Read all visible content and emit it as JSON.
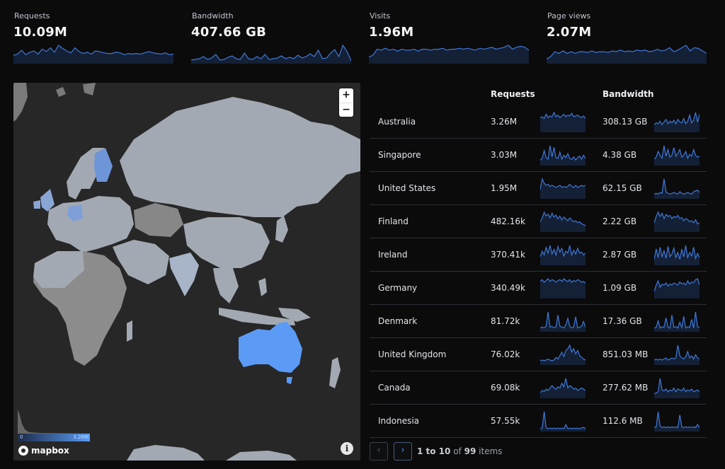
{
  "colors": {
    "accent": "#4c8cf2",
    "spark_line": "#3f78d8",
    "land": "#a0a6af",
    "land_dark": "#7a7a7a",
    "ocean": "#272727",
    "australia": "#5b9bf6"
  },
  "stats": [
    {
      "label": "Requests",
      "value": "10.09M",
      "spark": [
        12,
        14,
        20,
        13,
        17,
        19,
        14,
        22,
        18,
        24,
        17,
        28,
        23,
        19,
        16,
        24,
        18,
        15,
        17,
        14,
        19,
        18,
        16,
        15,
        15,
        17,
        16,
        13,
        15,
        14,
        15,
        14,
        16,
        18,
        16,
        15,
        14,
        16,
        13,
        14
      ]
    },
    {
      "label": "Bandwidth",
      "value": "407.66 GB",
      "spark": [
        4,
        5,
        6,
        9,
        5,
        7,
        12,
        4,
        5,
        8,
        10,
        6,
        5,
        14,
        6,
        5,
        9,
        6,
        12,
        5,
        6,
        7,
        10,
        6,
        8,
        6,
        11,
        7,
        9,
        13,
        9,
        18,
        6,
        7,
        14,
        19,
        9,
        25,
        16,
        3
      ]
    },
    {
      "label": "Visits",
      "value": "1.96M",
      "spark": [
        6,
        8,
        14,
        13,
        15,
        13,
        14,
        12,
        14,
        13,
        13,
        14,
        12,
        14,
        14,
        13,
        14,
        14,
        15,
        13,
        14,
        14,
        15,
        14,
        15,
        14,
        13,
        15,
        14,
        15,
        16,
        14,
        15,
        16,
        18,
        14,
        16,
        17,
        16,
        13
      ]
    },
    {
      "label": "Page views",
      "value": "2.07M",
      "spark": [
        5,
        8,
        14,
        12,
        15,
        12,
        14,
        12,
        14,
        14,
        13,
        15,
        13,
        14,
        14,
        13,
        15,
        14,
        16,
        14,
        15,
        14,
        16,
        15,
        16,
        14,
        15,
        17,
        15,
        16,
        19,
        14,
        16,
        19,
        22,
        15,
        19,
        18,
        15,
        12
      ]
    }
  ],
  "map": {
    "zoom_in": "+",
    "zoom_out": "−",
    "legend_min": "0",
    "legend_max": "3.26M",
    "attribution": "mapbox",
    "info": "i"
  },
  "table": {
    "headers": {
      "country": "",
      "requests": "Requests",
      "bandwidth": "Bandwidth"
    },
    "rows": [
      {
        "country": "Australia",
        "requests": "3.26M",
        "bandwidth": "308.13 GB",
        "req_spark": [
          16,
          17,
          15,
          20,
          16,
          18,
          17,
          22,
          17,
          19,
          16,
          18,
          20,
          17,
          19,
          18,
          21,
          17,
          18,
          19,
          17,
          16,
          18,
          15
        ],
        "bw_spark": [
          8,
          10,
          9,
          12,
          8,
          11,
          14,
          9,
          12,
          10,
          13,
          9,
          14,
          11,
          10,
          15,
          9,
          12,
          19,
          10,
          13,
          22,
          11,
          20
        ]
      },
      {
        "country": "Singapore",
        "requests": "3.03M",
        "bandwidth": "4.38 GB",
        "req_spark": [
          6,
          8,
          18,
          9,
          7,
          24,
          10,
          22,
          9,
          8,
          16,
          7,
          12,
          9,
          14,
          8,
          7,
          10,
          6,
          9,
          11,
          7,
          12,
          8
        ],
        "bw_spark": [
          6,
          8,
          14,
          10,
          7,
          20,
          9,
          16,
          8,
          10,
          18,
          9,
          12,
          16,
          8,
          10,
          14,
          7,
          11,
          9,
          16,
          10,
          8,
          9
        ]
      },
      {
        "country": "United States",
        "requests": "1.95M",
        "bandwidth": "62.15 GB",
        "req_spark": [
          8,
          18,
          14,
          12,
          13,
          11,
          12,
          11,
          10,
          11,
          12,
          10,
          11,
          10,
          11,
          13,
          11,
          10,
          12,
          10,
          11,
          12,
          11,
          12
        ],
        "bw_spark": [
          5,
          6,
          5,
          7,
          6,
          24,
          8,
          6,
          5,
          6,
          7,
          6,
          5,
          8,
          6,
          5,
          6,
          7,
          6,
          5,
          8,
          9,
          10,
          7
        ]
      },
      {
        "country": "Finland",
        "requests": "482.16k",
        "bandwidth": "2.22 GB",
        "req_spark": [
          10,
          14,
          20,
          16,
          18,
          14,
          19,
          15,
          17,
          13,
          16,
          12,
          15,
          13,
          11,
          14,
          12,
          10,
          11,
          9,
          10,
          8,
          7,
          6
        ],
        "bw_spark": [
          8,
          14,
          18,
          14,
          17,
          12,
          16,
          14,
          15,
          12,
          14,
          13,
          15,
          12,
          13,
          10,
          12,
          11,
          9,
          10,
          8,
          11,
          7,
          8
        ]
      },
      {
        "country": "Ireland",
        "requests": "370.41k",
        "bandwidth": "2.87 GB",
        "req_spark": [
          8,
          14,
          10,
          18,
          12,
          20,
          11,
          16,
          10,
          19,
          13,
          17,
          9,
          14,
          12,
          20,
          10,
          15,
          11,
          17,
          12,
          13,
          10,
          12
        ],
        "bw_spark": [
          6,
          18,
          8,
          20,
          9,
          16,
          7,
          21,
          9,
          12,
          19,
          8,
          14,
          6,
          18,
          9,
          22,
          8,
          14,
          10,
          20,
          7,
          13,
          8
        ]
      },
      {
        "country": "Germany",
        "requests": "340.49k",
        "bandwidth": "1.09 GB",
        "req_spark": [
          18,
          20,
          17,
          19,
          21,
          18,
          20,
          19,
          17,
          19,
          20,
          18,
          21,
          19,
          18,
          20,
          17,
          19,
          18,
          20,
          19,
          17,
          18,
          16
        ],
        "bw_spark": [
          6,
          12,
          16,
          10,
          13,
          12,
          14,
          11,
          13,
          12,
          14,
          13,
          12,
          15,
          13,
          14,
          12,
          16,
          13,
          15,
          14,
          17,
          18,
          12
        ]
      },
      {
        "country": "Denmark",
        "requests": "81.72k",
        "bandwidth": "17.36 GB",
        "req_spark": [
          4,
          5,
          4,
          6,
          24,
          5,
          6,
          4,
          5,
          20,
          6,
          5,
          4,
          8,
          16,
          6,
          4,
          5,
          18,
          4,
          5,
          6,
          12,
          5
        ],
        "bw_spark": [
          4,
          5,
          14,
          4,
          6,
          5,
          18,
          5,
          4,
          22,
          5,
          6,
          4,
          12,
          5,
          20,
          4,
          6,
          5,
          16,
          4,
          26,
          6,
          5
        ]
      },
      {
        "country": "United Kingdom",
        "requests": "76.02k",
        "bandwidth": "851.03 MB",
        "req_spark": [
          4,
          5,
          4,
          5,
          6,
          5,
          4,
          5,
          8,
          6,
          10,
          14,
          9,
          16,
          18,
          22,
          14,
          18,
          12,
          16,
          10,
          8,
          6,
          5
        ],
        "bw_spark": [
          4,
          5,
          4,
          5,
          4,
          5,
          6,
          4,
          5,
          6,
          5,
          6,
          18,
          8,
          6,
          5,
          7,
          12,
          6,
          8,
          5,
          9,
          6,
          5
        ]
      },
      {
        "country": "Canada",
        "requests": "69.08k",
        "bandwidth": "277.62 MB",
        "req_spark": [
          4,
          6,
          5,
          7,
          6,
          8,
          10,
          8,
          7,
          9,
          8,
          12,
          9,
          16,
          8,
          10,
          9,
          7,
          8,
          6,
          7,
          8,
          7,
          6
        ],
        "bw_spark": [
          4,
          5,
          6,
          20,
          8,
          7,
          9,
          6,
          8,
          7,
          10,
          6,
          9,
          8,
          7,
          10,
          6,
          8,
          7,
          9,
          6,
          7,
          8,
          6
        ]
      },
      {
        "country": "Indonesia",
        "requests": "57.55k",
        "bandwidth": "112.6 MB",
        "req_spark": [
          3,
          4,
          28,
          5,
          3,
          4,
          3,
          4,
          3,
          4,
          3,
          4,
          3,
          9,
          3,
          4,
          3,
          4,
          3,
          4,
          3,
          4,
          5,
          3
        ],
        "bw_spark": [
          4,
          5,
          24,
          6,
          4,
          5,
          4,
          5,
          4,
          5,
          4,
          5,
          4,
          20,
          5,
          4,
          5,
          4,
          5,
          4,
          5,
          4,
          8,
          4
        ]
      }
    ]
  },
  "pagination": {
    "prev": "‹",
    "next": "›",
    "range": "1 to 10",
    "of": "of",
    "total": "99",
    "suffix": "items"
  }
}
